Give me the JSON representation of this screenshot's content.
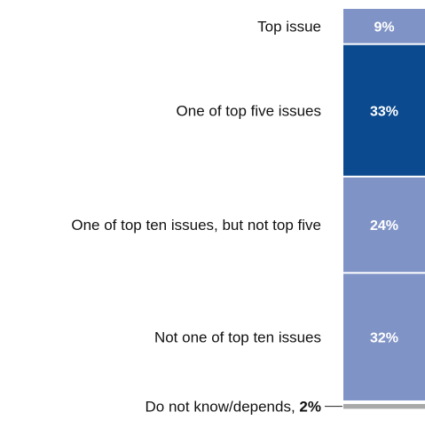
{
  "chart_data": {
    "type": "bar",
    "stacked": true,
    "orientation": "vertical",
    "categories": [
      "Top issue",
      "One of top five issues",
      "One of top ten issues, but not top five",
      "Not one of top ten issues",
      "Do not know/depends,"
    ],
    "values": [
      9,
      33,
      24,
      32,
      2
    ],
    "value_labels": [
      "9%",
      "33%",
      "24%",
      "32%",
      "2%"
    ],
    "colors": [
      "#7f93c6",
      "#0b4a8e",
      "#7f93c6",
      "#7f93c6",
      "#a9a9a9"
    ],
    "title": "",
    "xlabel": "",
    "ylabel": ""
  }
}
